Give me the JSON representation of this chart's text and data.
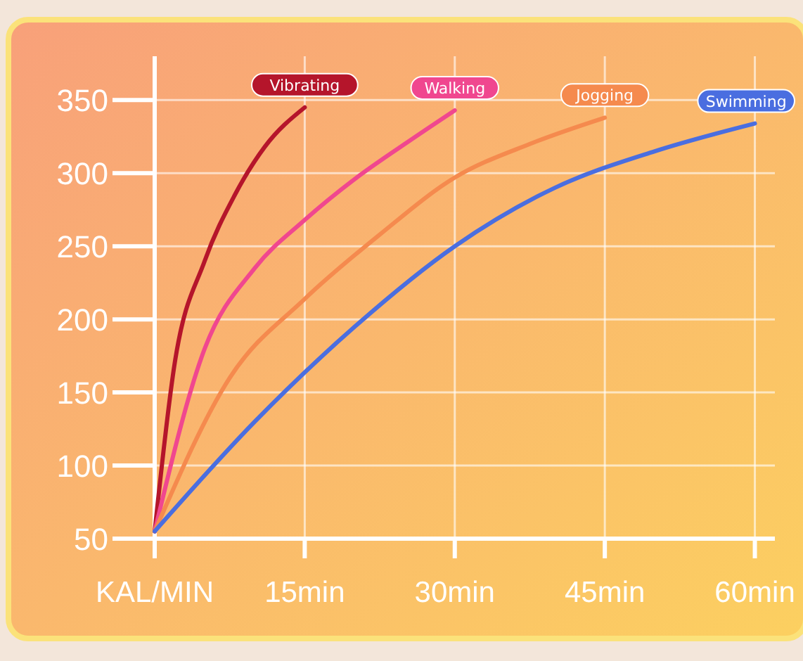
{
  "chart_data": {
    "type": "line",
    "xlim": [
      0,
      62
    ],
    "ylim": [
      50,
      380
    ],
    "xticks": [
      {
        "value": 0,
        "label": "KAL/MIN"
      },
      {
        "value": 15,
        "label": "15min"
      },
      {
        "value": 30,
        "label": "30min"
      },
      {
        "value": 45,
        "label": "45min"
      },
      {
        "value": 60,
        "label": "60min"
      }
    ],
    "yticks": [
      50,
      100,
      150,
      200,
      250,
      300,
      350
    ],
    "grid": true,
    "marker": "none",
    "line_style": "solid",
    "series": [
      {
        "name": "Vibrating",
        "color": "#b5152b",
        "x": [
          0,
          2,
          5,
          8,
          11,
          15
        ],
        "values": [
          55,
          170,
          240,
          285,
          318,
          345
        ]
      },
      {
        "name": "Walking",
        "color": "#f0478f",
        "x": [
          0,
          5,
          10,
          15,
          20,
          25,
          30
        ],
        "values": [
          55,
          180,
          235,
          268,
          296,
          320,
          343
        ]
      },
      {
        "name": "Jogging",
        "color": "#f58a4e",
        "x": [
          0,
          7.5,
          15,
          22.5,
          30,
          37.5,
          45
        ],
        "values": [
          55,
          160,
          214,
          258,
          297,
          320,
          338
        ]
      },
      {
        "name": "Swimming",
        "color": "#4a6ee0",
        "x": [
          0,
          10,
          20,
          30,
          40,
          50,
          60
        ],
        "values": [
          55,
          130,
          195,
          250,
          290,
          315,
          334
        ]
      }
    ]
  }
}
